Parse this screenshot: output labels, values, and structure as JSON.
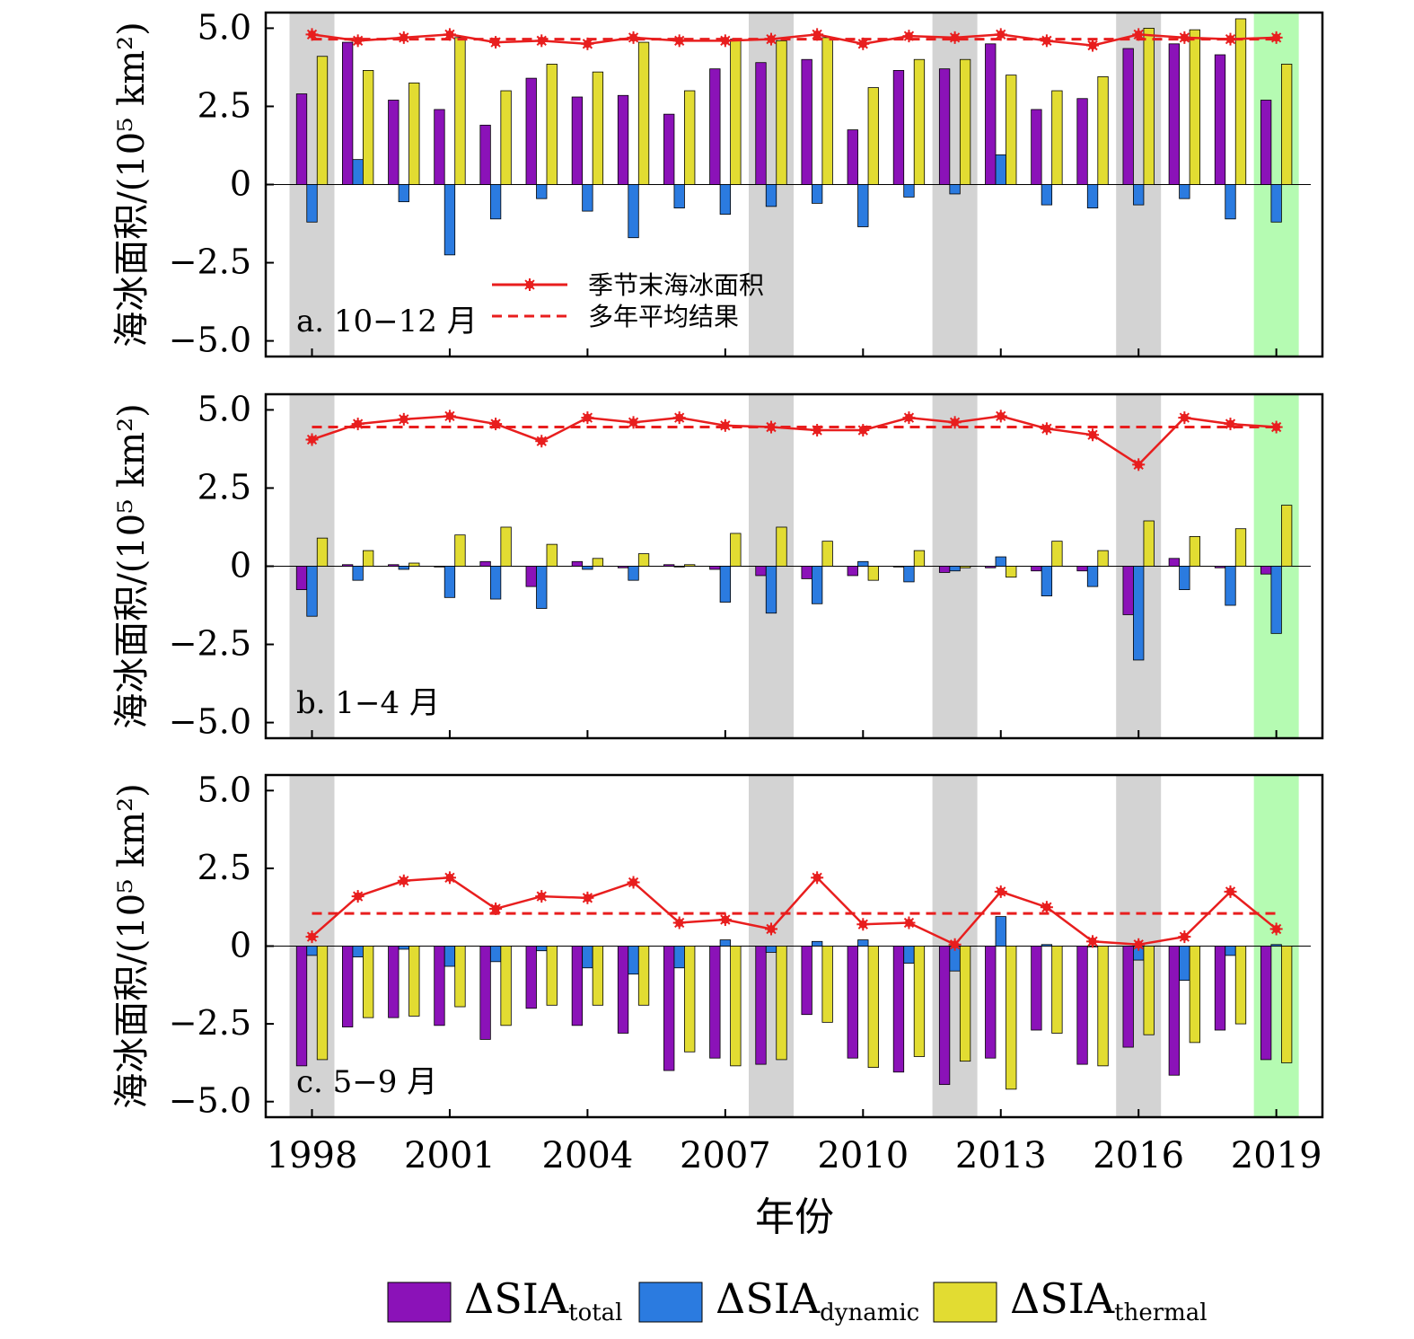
{
  "chart_data": {
    "type": "bar",
    "x": [
      1998,
      1999,
      2000,
      2001,
      2002,
      2003,
      2004,
      2005,
      2006,
      2007,
      2008,
      2009,
      2010,
      2011,
      2012,
      2013,
      2014,
      2015,
      2016,
      2017,
      2018,
      2019
    ],
    "xticks": [
      "1998",
      "2001",
      "2004",
      "2007",
      "2010",
      "2013",
      "2016",
      "2019"
    ],
    "xlabel": "年份",
    "yticks": [
      "5.0",
      "2.5",
      "0",
      "−2.5",
      "−5.0"
    ],
    "ylim": [
      -5.5,
      5.5
    ],
    "grey_years": [
      1998,
      2008,
      2012,
      2016
    ],
    "green_years": [
      2019
    ],
    "colors": {
      "total": "#8b12b8",
      "dynamic": "#2b7be0",
      "thermal": "#e2dc32",
      "line": "#e81e1e",
      "grey_band": "#d3d3d3",
      "green_band": "#b5fbb2"
    },
    "legend_bottom": [
      {
        "key": "total",
        "label_main": "ΔSIA",
        "label_sub": "total"
      },
      {
        "key": "dynamic",
        "label_main": "ΔSIA",
        "label_sub": "dynamic"
      },
      {
        "key": "thermal",
        "label_main": "ΔSIA",
        "label_sub": "thermal"
      }
    ],
    "panels": [
      {
        "label": "a. 10−12 月",
        "ylabel": "海冰面积/(10⁵ km²)",
        "legend": {
          "line_label": "季节末海冰面积",
          "mean_label": "多年平均结果"
        },
        "series": [
          {
            "key": "total",
            "name": "ΔSIA_total",
            "values": [
              2.9,
              4.55,
              2.7,
              2.4,
              1.9,
              3.4,
              2.8,
              2.85,
              2.25,
              3.7,
              3.9,
              4.0,
              1.75,
              3.65,
              3.7,
              4.5,
              2.4,
              2.75,
              4.35,
              4.5,
              4.15,
              2.7
            ]
          },
          {
            "key": "dynamic",
            "name": "ΔSIA_dynamic",
            "values": [
              -1.2,
              0.8,
              -0.55,
              -2.25,
              -1.1,
              -0.45,
              -0.85,
              -1.7,
              -0.75,
              -0.95,
              -0.7,
              -0.6,
              -1.35,
              -0.4,
              -0.3,
              0.95,
              -0.65,
              -0.75,
              -0.65,
              -0.45,
              -1.1,
              -1.2
            ]
          },
          {
            "key": "thermal",
            "name": "ΔSIA_thermal",
            "values": [
              4.1,
              3.65,
              3.25,
              4.7,
              3.0,
              3.85,
              3.6,
              4.55,
              3.0,
              4.65,
              4.6,
              4.7,
              3.1,
              4.0,
              4.0,
              3.5,
              3.0,
              3.45,
              5.0,
              4.95,
              5.3,
              3.85
            ]
          },
          {
            "key": "line",
            "name": "季节末海冰面积",
            "values": [
              4.8,
              4.6,
              4.7,
              4.8,
              4.55,
              4.6,
              4.5,
              4.7,
              4.6,
              4.6,
              4.65,
              4.8,
              4.5,
              4.75,
              4.7,
              4.8,
              4.6,
              4.45,
              4.8,
              4.7,
              4.65,
              4.7
            ]
          }
        ],
        "mean": 4.65
      },
      {
        "label": "b. 1−4 月",
        "ylabel": "海冰面积/(10⁵ km²)",
        "series": [
          {
            "key": "total",
            "name": "ΔSIA_total",
            "values": [
              -0.75,
              0.05,
              0.05,
              0.0,
              0.15,
              -0.65,
              0.15,
              -0.05,
              0.05,
              -0.1,
              -0.3,
              -0.4,
              -0.3,
              0.0,
              -0.2,
              -0.05,
              -0.15,
              -0.15,
              -1.55,
              0.25,
              -0.05,
              -0.25
            ]
          },
          {
            "key": "dynamic",
            "name": "ΔSIA_dynamic",
            "values": [
              -1.6,
              -0.45,
              -0.1,
              -1.0,
              -1.05,
              -1.35,
              -0.1,
              -0.45,
              0.0,
              -1.15,
              -1.5,
              -1.2,
              0.15,
              -0.5,
              -0.15,
              0.3,
              -0.95,
              -0.65,
              -3.0,
              -0.75,
              -1.25,
              -2.15
            ]
          },
          {
            "key": "thermal",
            "name": "ΔSIA_thermal",
            "values": [
              0.9,
              0.5,
              0.1,
              1.0,
              1.25,
              0.7,
              0.25,
              0.4,
              0.05,
              1.05,
              1.25,
              0.8,
              -0.45,
              0.5,
              -0.05,
              -0.35,
              0.8,
              0.5,
              1.45,
              0.95,
              1.2,
              1.95
            ]
          },
          {
            "key": "line",
            "name": "季节末海冰面积",
            "values": [
              4.05,
              4.55,
              4.7,
              4.8,
              4.55,
              4.0,
              4.75,
              4.6,
              4.75,
              4.5,
              4.45,
              4.35,
              4.35,
              4.75,
              4.6,
              4.8,
              4.4,
              4.2,
              3.25,
              4.75,
              4.55,
              4.45
            ]
          }
        ],
        "mean": 4.45
      },
      {
        "label": "c. 5−9 月",
        "ylabel": "海冰面积/(10⁵ km²)",
        "series": [
          {
            "key": "total",
            "name": "ΔSIA_total",
            "values": [
              -3.85,
              -2.6,
              -2.3,
              -2.55,
              -3.0,
              -2.0,
              -2.55,
              -2.8,
              -4.0,
              -3.6,
              -3.8,
              -2.2,
              -3.6,
              -4.05,
              -4.45,
              -3.6,
              -2.7,
              -3.8,
              -3.25,
              -4.15,
              -2.7,
              -3.65
            ]
          },
          {
            "key": "dynamic",
            "name": "ΔSIA_dynamic",
            "values": [
              -0.3,
              -0.35,
              -0.1,
              -0.65,
              -0.5,
              -0.15,
              -0.7,
              -0.9,
              -0.7,
              0.2,
              -0.2,
              0.15,
              0.2,
              -0.55,
              -0.8,
              0.95,
              0.05,
              0.0,
              -0.45,
              -1.1,
              -0.3,
              0.05
            ]
          },
          {
            "key": "thermal",
            "name": "ΔSIA_thermal",
            "values": [
              -3.65,
              -2.3,
              -2.25,
              -1.95,
              -2.55,
              -1.9,
              -1.9,
              -1.9,
              -3.4,
              -3.85,
              -3.65,
              -2.45,
              -3.9,
              -3.55,
              -3.7,
              -4.6,
              -2.8,
              -3.85,
              -2.85,
              -3.1,
              -2.5,
              -3.75
            ]
          },
          {
            "key": "line",
            "name": "季节末海冰面积",
            "values": [
              0.3,
              1.6,
              2.1,
              2.2,
              1.2,
              1.6,
              1.55,
              2.05,
              0.75,
              0.85,
              0.55,
              2.2,
              0.7,
              0.75,
              0.05,
              1.75,
              1.25,
              0.15,
              0.05,
              0.3,
              1.75,
              0.55
            ]
          }
        ],
        "mean": 1.05
      }
    ]
  }
}
